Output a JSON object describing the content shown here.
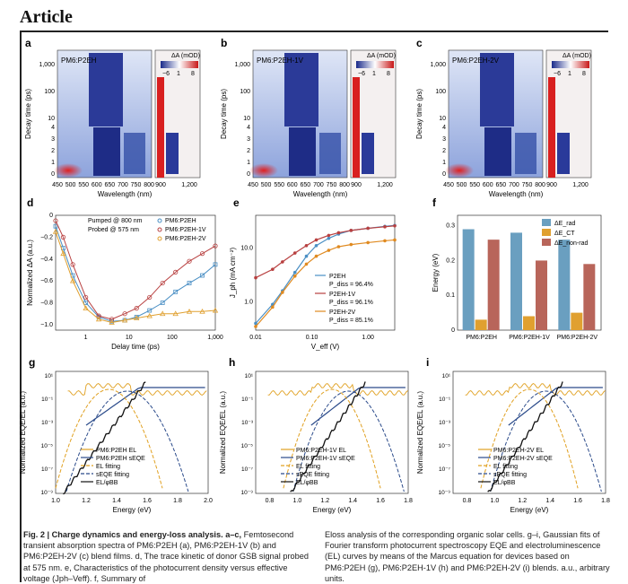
{
  "article": {
    "label": "Article"
  },
  "heatmaps": [
    {
      "panel": "a",
      "title": "PM6:P2EH",
      "wl_ticks": [
        "450",
        "500",
        "550",
        "600",
        "650",
        "700",
        "750",
        "800"
      ],
      "wl_ticks2": [
        "900",
        "1,200"
      ]
    },
    {
      "panel": "b",
      "title": "PM6:P2EH-1V",
      "wl_ticks": [
        "450",
        "500",
        "550",
        "600",
        "650",
        "700",
        "750",
        "800"
      ],
      "wl_ticks2": [
        "900",
        "1,200"
      ]
    },
    {
      "panel": "c",
      "title": "PM6:P2EH-2V",
      "wl_ticks": [
        "450",
        "500",
        "550",
        "600",
        "650",
        "700",
        "750",
        "800"
      ],
      "wl_ticks2": [
        "900",
        "1,200"
      ]
    }
  ],
  "heatmap_common": {
    "ylabel": "Decay time (ps)",
    "xlabel": "Wavelength (nm)",
    "y_ticks_top": [
      "1,000",
      "100",
      "10"
    ],
    "y_ticks_bottom": [
      "4",
      "3",
      "2",
      "1",
      "0"
    ],
    "colorbar_label": "ΔA (mOD)",
    "colorbar_ticks": [
      "−6",
      "1",
      "8"
    ]
  },
  "chart_data": [
    {
      "type": "scatter",
      "panel": "d",
      "xlabel": "Delay time (ps)",
      "ylabel": "Normalized ΔA (a.u.)",
      "xscale": "log",
      "xlim": [
        0.2,
        1000
      ],
      "ylim": [
        -1.05,
        0
      ],
      "x_ticks": [
        "1",
        "10",
        "100",
        "1,000"
      ],
      "y_ticks": [
        "0",
        "−0.2",
        "−0.4",
        "−0.6",
        "−0.8",
        "−1.0"
      ],
      "annotation": [
        "Pumped @ 800 nm",
        "Probed @ 575 nm"
      ],
      "series": [
        {
          "name": "PM6:P2EH",
          "color": "#4a8fc4",
          "x": [
            0.2,
            0.3,
            0.5,
            1,
            2,
            4,
            8,
            15,
            30,
            60,
            120,
            250,
            500,
            1000
          ],
          "y": [
            -0.1,
            -0.3,
            -0.55,
            -0.8,
            -0.93,
            -0.97,
            -0.96,
            -0.93,
            -0.87,
            -0.8,
            -0.7,
            -0.62,
            -0.55,
            -0.45
          ]
        },
        {
          "name": "PM6:P2EH-1V",
          "color": "#b84040",
          "x": [
            0.2,
            0.3,
            0.5,
            1,
            2,
            4,
            8,
            15,
            30,
            60,
            120,
            250,
            500,
            1000
          ],
          "y": [
            -0.05,
            -0.2,
            -0.45,
            -0.75,
            -0.92,
            -0.95,
            -0.9,
            -0.85,
            -0.75,
            -0.62,
            -0.52,
            -0.42,
            -0.35,
            -0.28
          ]
        },
        {
          "name": "PM6:P2EH-2V",
          "color": "#e0a030",
          "x": [
            0.2,
            0.3,
            0.5,
            1,
            2,
            4,
            8,
            15,
            30,
            60,
            120,
            250,
            500,
            1000
          ],
          "y": [
            -0.15,
            -0.35,
            -0.6,
            -0.85,
            -0.95,
            -0.98,
            -0.96,
            -0.94,
            -0.92,
            -0.9,
            -0.9,
            -0.88,
            -0.88,
            -0.87
          ]
        }
      ]
    },
    {
      "type": "line",
      "panel": "e",
      "xlabel": "V_eff (V)",
      "ylabel": "J_ph (mA cm⁻²)",
      "xscale": "log",
      "yscale": "log",
      "xlim": [
        0.01,
        3
      ],
      "ylim": [
        0.3,
        40
      ],
      "x_ticks": [
        "0.01",
        "0.10",
        "1.00"
      ],
      "y_ticks": [
        "1.0",
        "10.0"
      ],
      "series": [
        {
          "name": "P2EH",
          "pdiss": "P_diss = 96.4%",
          "color": "#4a8fc4",
          "x": [
            0.01,
            0.02,
            0.03,
            0.05,
            0.08,
            0.12,
            0.2,
            0.3,
            0.5,
            1,
            2,
            3
          ],
          "y": [
            0.4,
            0.9,
            1.6,
            3.5,
            7,
            11,
            15,
            18,
            21,
            23,
            25,
            26
          ]
        },
        {
          "name": "P2EH-1V",
          "pdiss": "P_diss = 96.1%",
          "color": "#b84040",
          "x": [
            0.01,
            0.02,
            0.03,
            0.05,
            0.08,
            0.12,
            0.2,
            0.3,
            0.5,
            1,
            2,
            3
          ],
          "y": [
            2.8,
            4.0,
            5.5,
            8,
            11,
            14,
            17,
            19,
            21,
            23,
            24.5,
            25.5
          ]
        },
        {
          "name": "P2EH-2V",
          "pdiss": "P_diss = 85.1%",
          "color": "#e08a20",
          "x": [
            0.01,
            0.02,
            0.03,
            0.05,
            0.08,
            0.12,
            0.2,
            0.3,
            0.5,
            1,
            2,
            3
          ],
          "y": [
            0.35,
            0.8,
            1.5,
            3,
            5,
            7,
            9,
            10.5,
            11.5,
            12.5,
            13.5,
            14
          ]
        }
      ]
    },
    {
      "type": "bar",
      "panel": "f",
      "ylabel": "Energy (eV)",
      "ylim": [
        0,
        0.33
      ],
      "y_ticks": [
        "0",
        "0.1",
        "0.2",
        "0.3"
      ],
      "categories": [
        "PM6:P2EH",
        "PM6:P2EH-1V",
        "PM6:P2EH-2V"
      ],
      "series": [
        {
          "name": "ΔE_rad",
          "color": "#6a9fc0",
          "values": [
            0.29,
            0.28,
            0.26
          ]
        },
        {
          "name": "ΔE_CT",
          "color": "#e0a030",
          "values": [
            0.03,
            0.04,
            0.05
          ]
        },
        {
          "name": "ΔE_non-rad",
          "color": "#b8655a",
          "values": [
            0.26,
            0.2,
            0.19
          ]
        }
      ]
    },
    {
      "type": "line",
      "panel": "g",
      "xlabel": "Energy (eV)",
      "ylabel": "Normalized EQE/EL (a.u.)",
      "xlim": [
        1.0,
        2.0
      ],
      "x_ticks": [
        "1.0",
        "1.2",
        "1.4",
        "1.6",
        "1.8",
        "2.0"
      ],
      "legend": [
        "PM6:P2EH EL",
        "PM6:P2EH sEQE",
        "EL fitting",
        "sEQE fitting",
        "EL/φBB"
      ]
    },
    {
      "type": "line",
      "panel": "h",
      "xlabel": "Energy (eV)",
      "xlim": [
        0.7,
        1.8
      ],
      "x_ticks": [
        "0.8",
        "1.0",
        "1.2",
        "1.4",
        "1.6",
        "1.8"
      ],
      "legend": [
        "PM6:P2EH-1V EL",
        "PM6:P2EH-1V sEQE",
        "EL fitting",
        "sEQE fitting",
        "EL/φBB"
      ]
    },
    {
      "type": "line",
      "panel": "i",
      "xlabel": "Energy (eV)",
      "xlim": [
        0.7,
        1.8
      ],
      "x_ticks": [
        "0.8",
        "1.0",
        "1.2",
        "1.4",
        "1.6",
        "1.8"
      ],
      "legend": [
        "PM6:P2EH-2V EL",
        "PM6:P2EH-2V sEQE",
        "EL fitting",
        "sEQE fitting",
        "EL/φBB"
      ]
    }
  ],
  "eqe_y_ticks": [
    "10¹",
    "10⁻¹",
    "10⁻³",
    "10⁻⁵",
    "10⁻⁷",
    "10⁻⁹"
  ],
  "caption": {
    "left_bold": "Fig. 2 | Charge dynamics and energy-loss analysis. a–c,",
    "left_text": " Femtosecond transient absorption spectra of PM6:P2EH (a), PM6:P2EH-1V (b) and PM6:P2EH-2V (c) blend films. d, The trace kinetic of donor GSB signal probed at 575 nm. e, Characteristics of the photocurrent density versus effective voltage (Jph–Veff). f, Summary of",
    "right_text": "Eloss analysis of the corresponding organic solar cells. g–i, Gaussian fits of Fourier transform photocurrent spectroscopy EQE and electroluminescence (EL) curves by means of the Marcus equation for devices based on PM6:P2EH (g), PM6:P2EH-1V (h) and PM6:P2EH-2V (i) blends. a.u., arbitrary units."
  }
}
